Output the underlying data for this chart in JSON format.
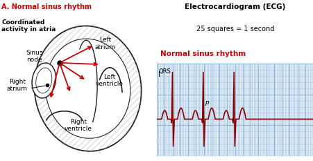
{
  "title_a": "A. Normal sinus rhythm",
  "title_a_color": "#cc0000",
  "coord_label": "Coordinated\nactivity in atria",
  "ecg_title": "Electrocardiogram (ECG)",
  "ecg_subtitle": "25 squares = 1 second",
  "ecg_rhythm_label": "Normal sinus rhythm",
  "ecg_rhythm_color": "#cc0000",
  "qrs_label": "QRS",
  "p_label": "p",
  "grid_color": "#adc8e0",
  "grid_major_color": "#90b8d8",
  "ecg_color": "#8b0000",
  "bg_color": "#ddeaf5",
  "heart_line_color": "#222222",
  "arrow_color": "#cc0000"
}
